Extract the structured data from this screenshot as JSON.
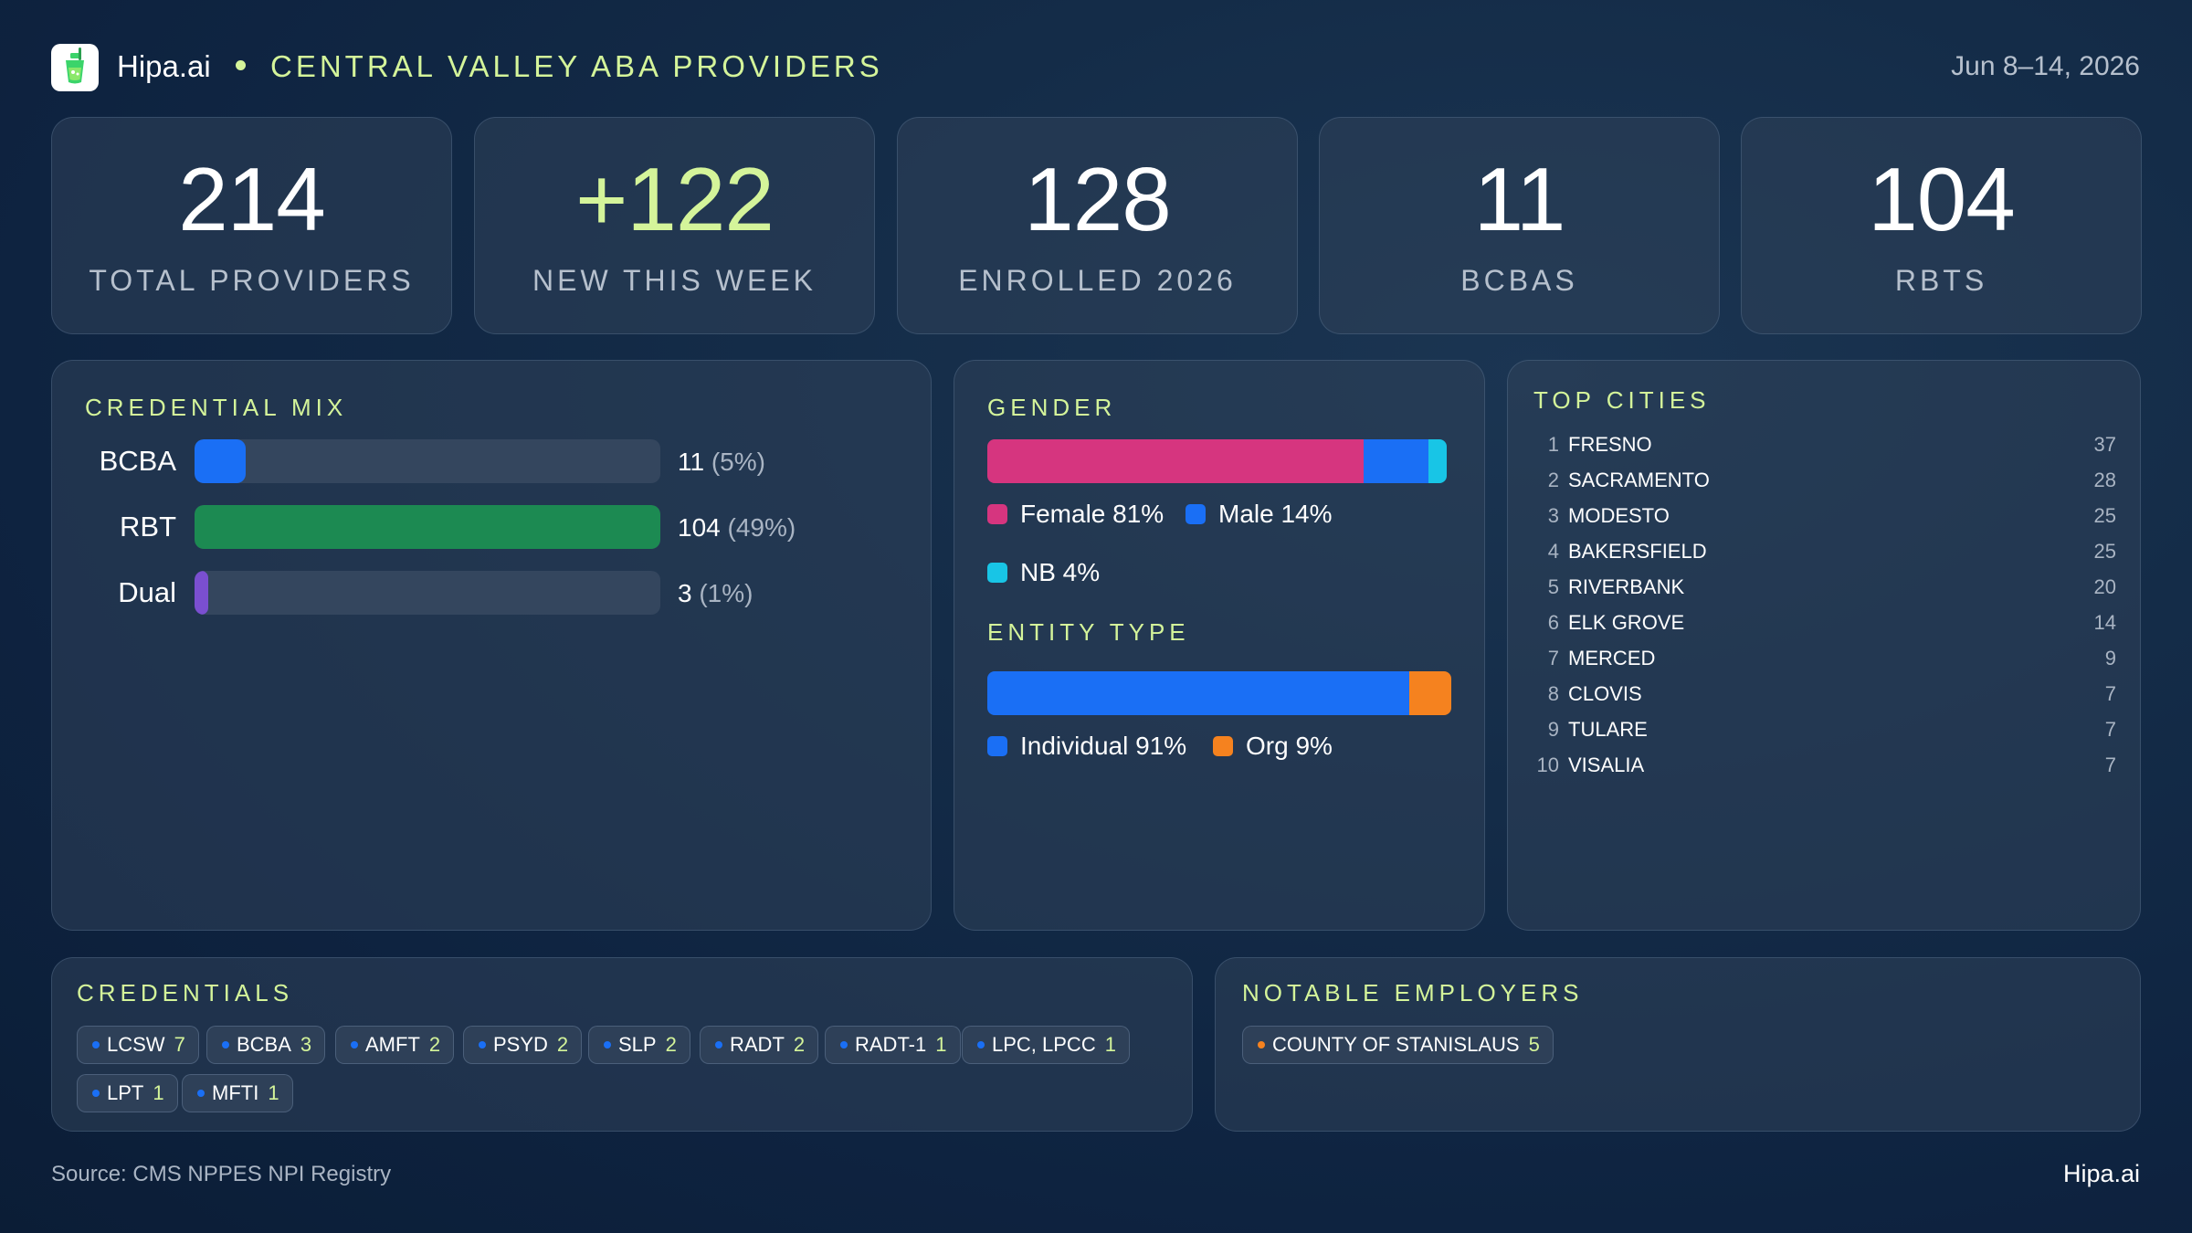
{
  "header": {
    "brand": "Hipa.ai",
    "title": "CENTRAL VALLEY ABA PROVIDERS",
    "date_range": "Jun 8–14, 2026"
  },
  "kpis": [
    {
      "value": "214",
      "label": "TOTAL PROVIDERS"
    },
    {
      "value": "+122",
      "label": "NEW THIS WEEK"
    },
    {
      "value": "128",
      "label": "ENROLLED 2026"
    },
    {
      "value": "11",
      "label": "BCBAS"
    },
    {
      "value": "104",
      "label": "RBTS"
    }
  ],
  "credential_mix": {
    "title": "CREDENTIAL MIX",
    "rows": [
      {
        "label": "BCBA",
        "count": "11",
        "pct": "(5%)",
        "fraction": 0.11,
        "color": "#1a6ff5"
      },
      {
        "label": "RBT",
        "count": "104",
        "pct": "(49%)",
        "fraction": 1.0,
        "color": "#1c8a52"
      },
      {
        "label": "Dual",
        "count": "3",
        "pct": "(1%)",
        "fraction": 0.03,
        "color": "#7a4fd0"
      }
    ]
  },
  "gender": {
    "title": "GENDER",
    "segments": [
      {
        "label": "Female 81%",
        "share": 81,
        "color": "#d6357f"
      },
      {
        "label": "Male 14%",
        "share": 14,
        "color": "#1a6ff5"
      },
      {
        "label": "NB 4%",
        "share": 4,
        "color": "#18c5e6"
      }
    ]
  },
  "entity_type": {
    "title": "ENTITY TYPE",
    "segments": [
      {
        "label": "Individual 91%",
        "share": 91,
        "color": "#1a6ff5"
      },
      {
        "label": "Org 9%",
        "share": 9,
        "color": "#f5821f"
      }
    ]
  },
  "top_cities": {
    "title": "TOP CITIES",
    "rows": [
      {
        "rank": "1",
        "name": "FRESNO",
        "count": "37"
      },
      {
        "rank": "2",
        "name": "SACRAMENTO",
        "count": "28"
      },
      {
        "rank": "3",
        "name": "MODESTO",
        "count": "25"
      },
      {
        "rank": "4",
        "name": "BAKERSFIELD",
        "count": "25"
      },
      {
        "rank": "5",
        "name": "RIVERBANK",
        "count": "20"
      },
      {
        "rank": "6",
        "name": "ELK GROVE",
        "count": "14"
      },
      {
        "rank": "7",
        "name": "MERCED",
        "count": "9"
      },
      {
        "rank": "8",
        "name": "CLOVIS",
        "count": "7"
      },
      {
        "rank": "9",
        "name": "TULARE",
        "count": "7"
      },
      {
        "rank": "10",
        "name": "VISALIA",
        "count": "7"
      }
    ]
  },
  "credentials": {
    "title": "CREDENTIALS",
    "dot_color": "#1a6ff5",
    "chips": [
      {
        "name": "LCSW",
        "count": "7"
      },
      {
        "name": "BCBA",
        "count": "3"
      },
      {
        "name": "AMFT",
        "count": "2"
      },
      {
        "name": "PSYD",
        "count": "2"
      },
      {
        "name": "SLP",
        "count": "2"
      },
      {
        "name": "RADT",
        "count": "2"
      },
      {
        "name": "RADT-1",
        "count": "1"
      },
      {
        "name": "LPC, LPCC",
        "count": "1"
      },
      {
        "name": "LPT",
        "count": "1"
      },
      {
        "name": "MFTI",
        "count": "1"
      }
    ]
  },
  "employers": {
    "title": "NOTABLE EMPLOYERS",
    "dot_color": "#f5821f",
    "chips": [
      {
        "name": "COUNTY OF STANISLAUS",
        "count": "5"
      }
    ]
  },
  "footer": {
    "source": "Source: CMS NPPES NPI Registry",
    "brand": "Hipa.ai"
  }
}
